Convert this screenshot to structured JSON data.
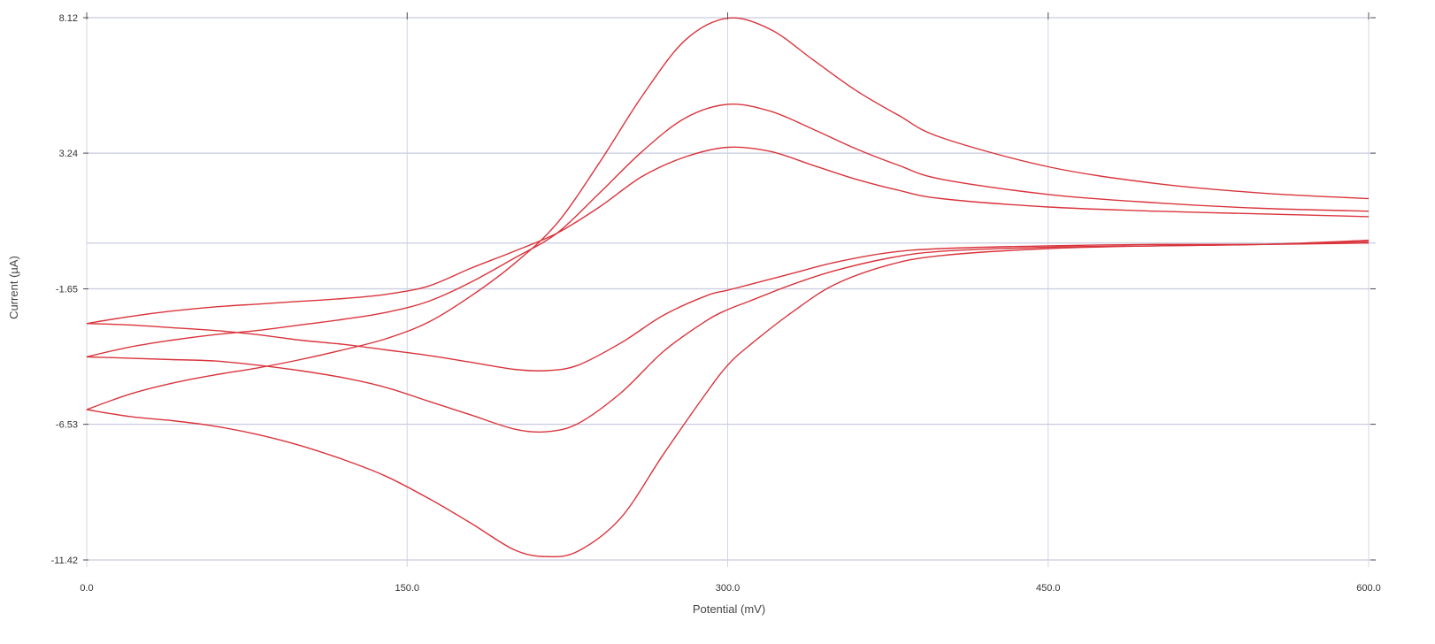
{
  "chart_data": {
    "type": "line",
    "xlabel": "Potential (mV)",
    "ylabel": "Current (µA)",
    "xlim": [
      0,
      600
    ],
    "ylim": [
      -11.42,
      8.12
    ],
    "x_ticks": [
      0,
      150,
      300,
      450,
      600
    ],
    "x_tick_labels": [
      "0.0",
      "150.0",
      "300.0",
      "450.0",
      "600.0"
    ],
    "y_ticks": [
      8.12,
      3.24,
      -1.65,
      -6.53,
      -11.42
    ],
    "y_tick_labels": [
      "8.12",
      "3.24",
      "-1.65",
      "-6.53",
      "-11.42"
    ],
    "grid": true,
    "zero_line": true,
    "series": [
      {
        "color": "#d9343c",
        "forward": {
          "x": [
            0,
            20,
            40,
            60,
            80,
            100,
            120,
            140,
            160,
            180,
            200,
            220,
            240,
            260,
            280,
            300,
            320,
            340,
            360,
            380,
            400,
            450,
            500,
            550,
            600
          ],
          "y": [
            -2.9,
            -2.65,
            -2.45,
            -2.3,
            -2.2,
            -2.1,
            -2.0,
            -1.85,
            -1.55,
            -0.9,
            -0.3,
            0.35,
            1.3,
            2.4,
            3.1,
            3.45,
            3.3,
            2.8,
            2.3,
            1.9,
            1.6,
            1.3,
            1.15,
            1.05,
            0.95
          ]
        },
        "reverse": {
          "x": [
            600,
            550,
            500,
            450,
            400,
            375,
            350,
            330,
            310,
            300,
            290,
            270,
            250,
            230,
            215,
            200,
            180,
            160,
            140,
            120,
            100,
            80,
            60,
            40,
            20,
            0
          ],
          "y": [
            0.0,
            -0.05,
            -0.05,
            -0.1,
            -0.2,
            -0.35,
            -0.7,
            -1.1,
            -1.5,
            -1.7,
            -1.9,
            -2.6,
            -3.6,
            -4.4,
            -4.6,
            -4.55,
            -4.3,
            -4.05,
            -3.85,
            -3.65,
            -3.5,
            -3.3,
            -3.15,
            -3.05,
            -2.95,
            -2.9
          ]
        }
      },
      {
        "color": "#d9343c",
        "forward": {
          "x": [
            0,
            20,
            40,
            60,
            80,
            100,
            120,
            140,
            160,
            180,
            200,
            220,
            240,
            260,
            280,
            300,
            320,
            340,
            360,
            380,
            400,
            450,
            500,
            550,
            600
          ],
          "y": [
            -4.1,
            -3.75,
            -3.5,
            -3.3,
            -3.15,
            -2.95,
            -2.75,
            -2.5,
            -2.1,
            -1.4,
            -0.55,
            0.35,
            1.8,
            3.3,
            4.5,
            5.0,
            4.75,
            4.1,
            3.4,
            2.8,
            2.3,
            1.75,
            1.45,
            1.25,
            1.15
          ]
        },
        "reverse": {
          "x": [
            600,
            550,
            500,
            450,
            400,
            375,
            350,
            330,
            310,
            300,
            290,
            270,
            250,
            230,
            215,
            200,
            180,
            160,
            140,
            120,
            100,
            80,
            60,
            40,
            20,
            0
          ],
          "y": [
            0.05,
            -0.05,
            -0.1,
            -0.15,
            -0.3,
            -0.55,
            -1.0,
            -1.5,
            -2.1,
            -2.4,
            -2.8,
            -3.9,
            -5.4,
            -6.5,
            -6.8,
            -6.7,
            -6.2,
            -5.7,
            -5.2,
            -4.85,
            -4.6,
            -4.4,
            -4.25,
            -4.2,
            -4.15,
            -4.1
          ]
        }
      },
      {
        "color": "#d9343c",
        "forward": {
          "x": [
            0,
            20,
            40,
            60,
            80,
            100,
            120,
            140,
            160,
            180,
            200,
            220,
            240,
            260,
            280,
            300,
            320,
            340,
            360,
            380,
            400,
            450,
            500,
            550,
            600
          ],
          "y": [
            -6.0,
            -5.45,
            -5.05,
            -4.75,
            -4.5,
            -4.2,
            -3.85,
            -3.45,
            -2.85,
            -1.9,
            -0.75,
            0.7,
            2.9,
            5.3,
            7.3,
            8.1,
            7.7,
            6.6,
            5.5,
            4.6,
            3.8,
            2.75,
            2.15,
            1.8,
            1.6
          ]
        },
        "reverse": {
          "x": [
            600,
            550,
            500,
            450,
            400,
            375,
            350,
            330,
            310,
            300,
            290,
            270,
            250,
            230,
            215,
            200,
            180,
            160,
            140,
            120,
            100,
            80,
            60,
            40,
            20,
            0
          ],
          "y": [
            0.1,
            -0.05,
            -0.1,
            -0.2,
            -0.45,
            -0.8,
            -1.5,
            -2.5,
            -3.7,
            -4.4,
            -5.4,
            -7.6,
            -9.9,
            -11.1,
            -11.3,
            -11.05,
            -10.1,
            -9.2,
            -8.4,
            -7.8,
            -7.3,
            -6.9,
            -6.6,
            -6.4,
            -6.25,
            -6.0
          ]
        }
      }
    ]
  }
}
